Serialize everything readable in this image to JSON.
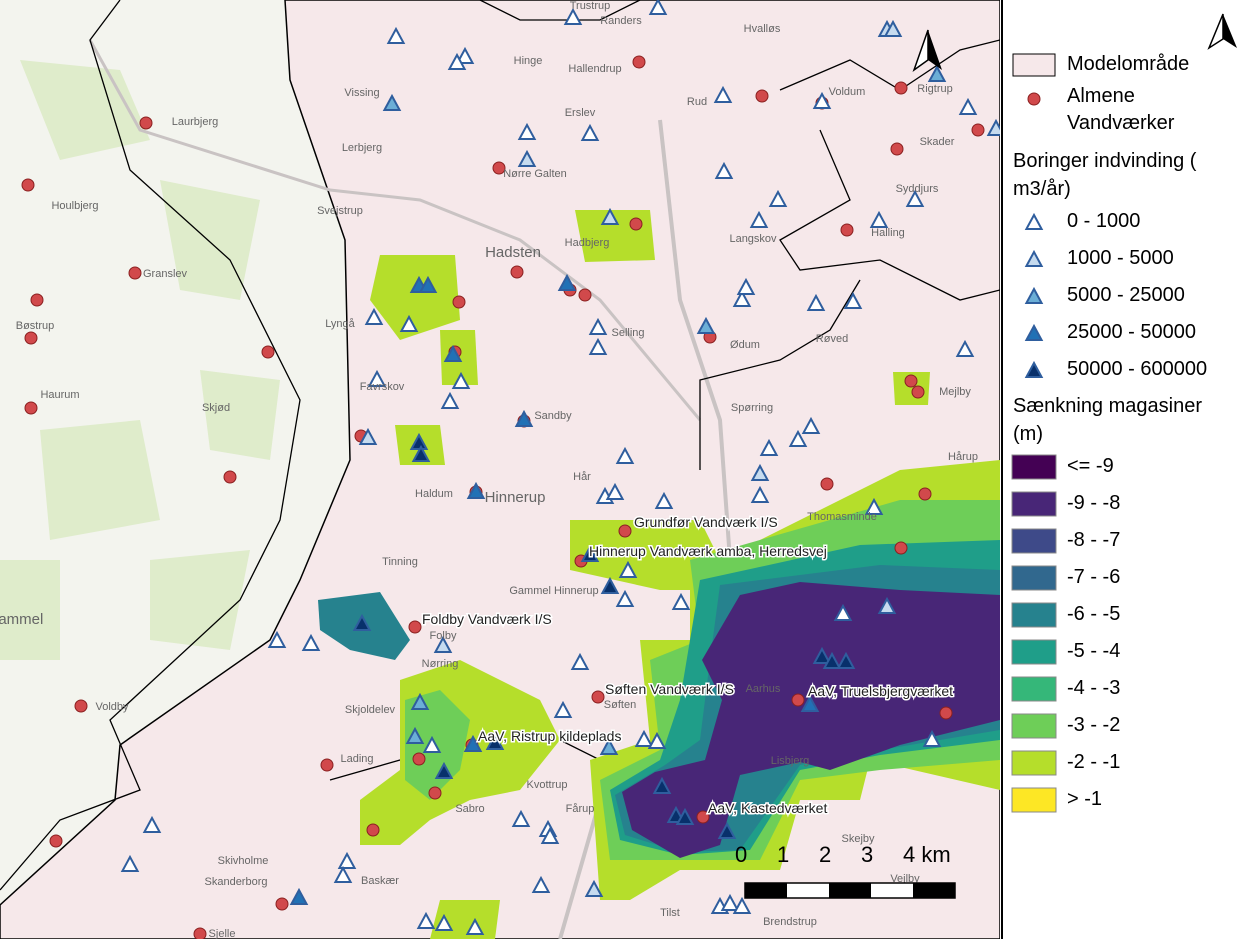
{
  "map": {
    "place_names": [
      "Randers",
      "Trustrup",
      "Hvalløs",
      "Hinge",
      "Hallendrup",
      "Vissing",
      "Laurbjerg",
      "Erslev",
      "Rud",
      "Voldum",
      "Rigtrup",
      "Skader",
      "Syddjurs",
      "Lerbjerg",
      "Nørre Galten",
      "Houlbjerg",
      "Svejstrup",
      "Hadsten",
      "Hadbjerg",
      "Langskov",
      "Halling",
      "Granslev",
      "Bøstrup",
      "Lyngå",
      "Selling",
      "Ødum",
      "Røved",
      "Favrskov",
      "Haurum",
      "Skjød",
      "Sandby",
      "Spørring",
      "Mejlby",
      "Hår",
      "Hårup",
      "Haldum",
      "Hinnerup",
      "Thomasminde",
      "Tinning",
      "Gammel Hinnerup",
      "Folby",
      "Nørring",
      "Skjoldelev",
      "Søften",
      "Aarhus",
      "Voldby",
      "Lading",
      "Kvottrup",
      "Fårup",
      "Sabro",
      "Skivholme",
      "Skanderborg",
      "Baskær",
      "Tilst",
      "Brendstrup",
      "Skejby",
      "Vejlby",
      "Sjelle",
      "Lisbjerg",
      "Gammel"
    ],
    "waterworks_labels": [
      "Grundfør Vandværk I/S",
      "Hinnerup Vandværk amba, Herredsvej",
      "Foldby Vandværk I/S",
      "Søften Vandværk I/S",
      "AaV, Truelsbjergværket",
      "AaV, Ristrup kildeplads",
      "AaV, Kastedværket"
    ],
    "scale_bar": [
      "0",
      "1",
      "2",
      "3",
      "4 km"
    ]
  },
  "legend": {
    "model_area": "Modelområde",
    "waterworks": "Almene Vandværker",
    "wells_heading": "Boringer indvinding ( m3/år)",
    "wells_classes": [
      {
        "label": "0 - 1000",
        "color": "#ffffff"
      },
      {
        "label": "1000 - 5000",
        "color": "#c6dbef"
      },
      {
        "label": "5000 - 25000",
        "color": "#6baed6"
      },
      {
        "label": "25000 - 50000",
        "color": "#2171b5"
      },
      {
        "label": "50000 - 600000",
        "color": "#08306b"
      }
    ],
    "drawdown_heading": "Sænkning magasiner (m)",
    "drawdown_classes": [
      {
        "label": "<= -9",
        "color": "#440154"
      },
      {
        "label": "-9 - -8",
        "color": "#482677"
      },
      {
        "label": "-8 - -7",
        "color": "#3e4a89"
      },
      {
        "label": "-7 - -6",
        "color": "#31688e"
      },
      {
        "label": "-6 - -5",
        "color": "#26828e"
      },
      {
        "label": "-5 - -4",
        "color": "#1f9e89"
      },
      {
        "label": "-4 - -3",
        "color": "#35b779"
      },
      {
        "label": "-3 - -2",
        "color": "#6ece58"
      },
      {
        "label": "-2 - -1",
        "color": "#b5de2b"
      },
      {
        "label": "> -1",
        "color": "#fde725"
      }
    ]
  }
}
